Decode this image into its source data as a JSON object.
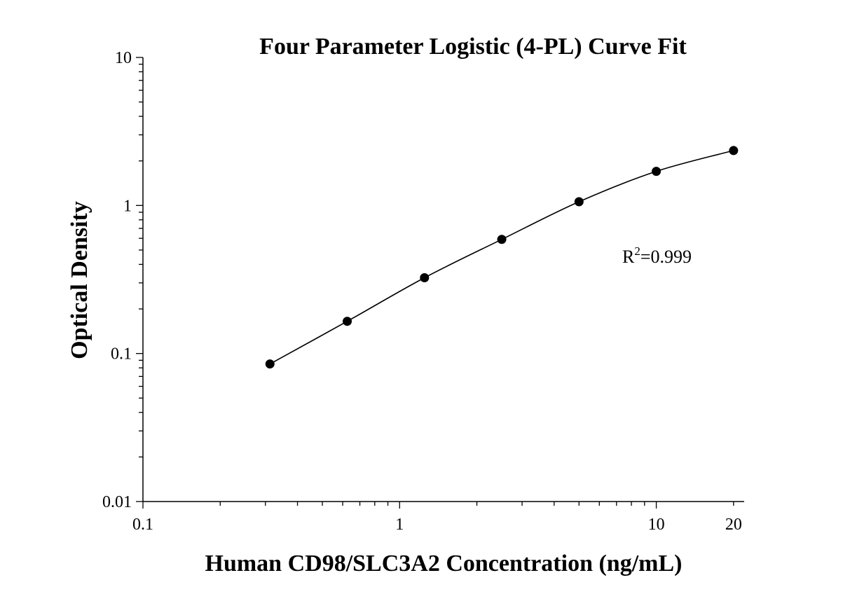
{
  "chart_data": {
    "type": "scatter",
    "title": "Four Parameter Logistic (4-PL) Curve Fit",
    "xlabel": "Human CD98/SLC3A2 Concentration (ng/mL)",
    "ylabel": "Optical Density",
    "xscale": "log",
    "yscale": "log",
    "xlim": [
      0.1,
      22
    ],
    "ylim": [
      0.01,
      10
    ],
    "grid": false,
    "x_ticks": [
      {
        "value": 0.1,
        "label": "0.1"
      },
      {
        "value": 1,
        "label": "1"
      },
      {
        "value": 10,
        "label": "10"
      },
      {
        "value": 20,
        "label": "20"
      }
    ],
    "y_ticks": [
      {
        "value": 0.01,
        "label": "0.01"
      },
      {
        "value": 0.1,
        "label": "0.1"
      },
      {
        "value": 1,
        "label": "1"
      },
      {
        "value": 10,
        "label": "10"
      }
    ],
    "series": [
      {
        "points": [
          {
            "x": 0.3125,
            "y": 0.085
          },
          {
            "x": 0.625,
            "y": 0.165
          },
          {
            "x": 1.25,
            "y": 0.325
          },
          {
            "x": 2.5,
            "y": 0.59
          },
          {
            "x": 5,
            "y": 1.06
          },
          {
            "x": 10,
            "y": 1.7
          },
          {
            "x": 20,
            "y": 2.35
          }
        ],
        "fit_curve": "4-PL",
        "color": "#000000"
      }
    ],
    "annotations": [
      {
        "base": "R",
        "superscript": "2",
        "rest": "=0.999"
      }
    ]
  }
}
